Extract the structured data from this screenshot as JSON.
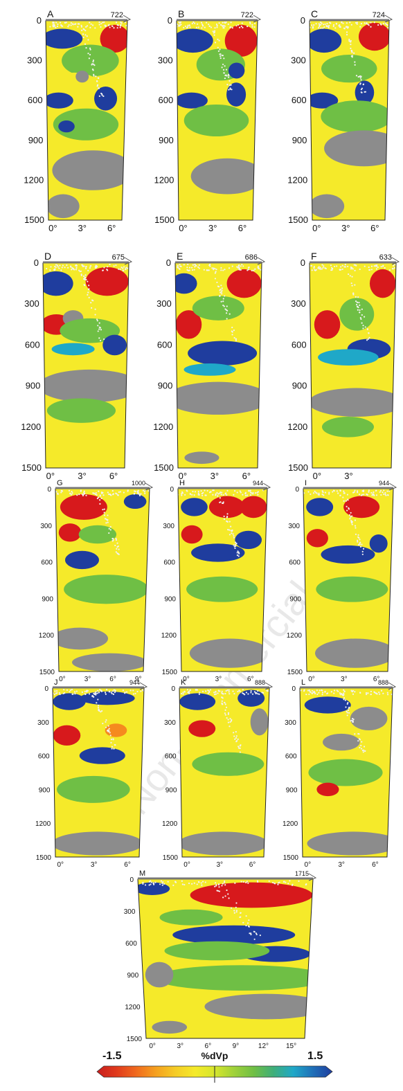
{
  "colors": {
    "red": "#d7191c",
    "orange": "#f58a1f",
    "yellow": "#f5ea2a",
    "green": "#6fbf45",
    "cyan": "#1fa8c8",
    "blue": "#1f3d9e",
    "gray": "#8c8c8c",
    "eq": "#f2f2f2"
  },
  "depth_ticks": [
    "0",
    "300",
    "600",
    "900",
    "1200",
    "1500"
  ],
  "panels": [
    {
      "id": "A",
      "number": "722",
      "lon_ticks": [
        "0°",
        "3°",
        "6°"
      ]
    },
    {
      "id": "B",
      "number": "722",
      "lon_ticks": [
        "0°",
        "3°",
        "6°"
      ]
    },
    {
      "id": "C",
      "number": "724",
      "lon_ticks": [
        "0°",
        "3°",
        "6°"
      ]
    },
    {
      "id": "D",
      "number": "675",
      "lon_ticks": [
        "0°",
        "3°",
        "6°"
      ]
    },
    {
      "id": "E",
      "number": "686",
      "lon_ticks": [
        "0°",
        "3°",
        "6°"
      ]
    },
    {
      "id": "F",
      "number": "633",
      "lon_ticks": [
        "0°",
        "3°"
      ]
    },
    {
      "id": "G",
      "number": "1000",
      "lon_ticks": [
        "0°",
        "3°",
        "6°",
        "9°"
      ]
    },
    {
      "id": "H",
      "number": "944",
      "lon_ticks": [
        "0°",
        "3°",
        "6°"
      ]
    },
    {
      "id": "I",
      "number": "944",
      "lon_ticks": [
        "0°",
        "3°",
        "6°"
      ]
    },
    {
      "id": "J",
      "number": "944",
      "lon_ticks": [
        "0°",
        "3°",
        "6°"
      ]
    },
    {
      "id": "K",
      "number": "888",
      "lon_ticks": [
        "0°",
        "3°",
        "6°"
      ]
    },
    {
      "id": "L",
      "number": "888",
      "lon_ticks": [
        "0°",
        "3°",
        "6°"
      ]
    },
    {
      "id": "M",
      "number": "1715",
      "lon_ticks": [
        "0°",
        "3°",
        "6°",
        "9°",
        "12°",
        "15°"
      ]
    }
  ],
  "colorbar": {
    "min_label": "-1.5",
    "max_label": "1.5",
    "title": "%dVp",
    "stops": [
      "#c81e1e",
      "#e03a1c",
      "#f06a1e",
      "#f5a01f",
      "#f5cc26",
      "#f5ea2a",
      "#d6e62c",
      "#9fd13a",
      "#6fbf45",
      "#3fae7a",
      "#1fa8c8",
      "#1f6fb8",
      "#1f3d9e"
    ]
  },
  "watermark": "Non-commercial"
}
